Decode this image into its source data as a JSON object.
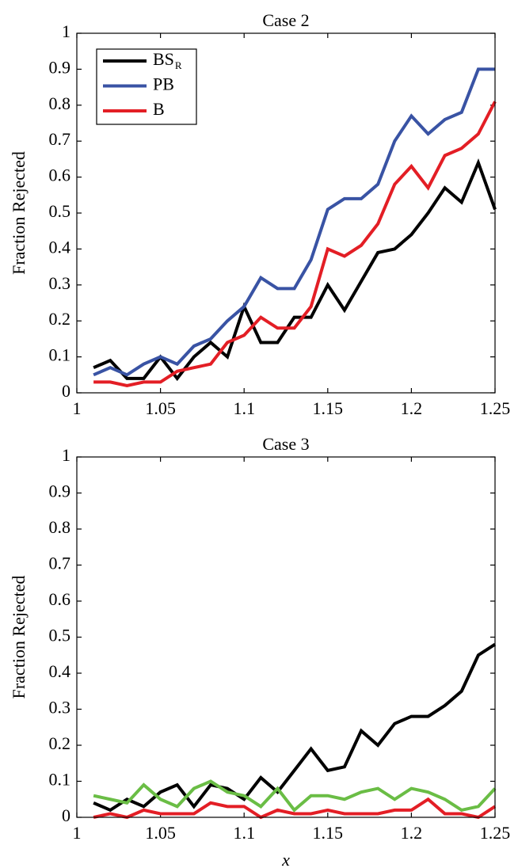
{
  "chart_data": [
    {
      "type": "line",
      "title": "Case 2",
      "ylabel": "Fraction Rejected",
      "x": [
        1.01,
        1.02,
        1.03,
        1.04,
        1.05,
        1.06,
        1.07,
        1.08,
        1.09,
        1.1,
        1.11,
        1.12,
        1.13,
        1.14,
        1.15,
        1.16,
        1.17,
        1.18,
        1.19,
        1.2,
        1.21,
        1.22,
        1.23,
        1.24,
        1.25
      ],
      "series": [
        {
          "name": "BS",
          "name_sub": "R",
          "color": "#000000",
          "values": [
            0.07,
            0.09,
            0.04,
            0.04,
            0.1,
            0.04,
            0.1,
            0.14,
            0.1,
            0.24,
            0.14,
            0.14,
            0.21,
            0.21,
            0.3,
            0.23,
            0.31,
            0.39,
            0.4,
            0.44,
            0.5,
            0.57,
            0.53,
            0.64,
            0.51
          ]
        },
        {
          "name": "PB",
          "color": "#3953a4",
          "values": [
            0.05,
            0.07,
            0.05,
            0.08,
            0.1,
            0.08,
            0.13,
            0.15,
            0.2,
            0.24,
            0.32,
            0.29,
            0.29,
            0.37,
            0.51,
            0.54,
            0.54,
            0.58,
            0.7,
            0.77,
            0.72,
            0.76,
            0.78,
            0.9,
            0.9
          ]
        },
        {
          "name": "B",
          "color": "#e31e25",
          "values": [
            0.03,
            0.03,
            0.02,
            0.03,
            0.03,
            0.06,
            0.07,
            0.08,
            0.14,
            0.16,
            0.21,
            0.18,
            0.18,
            0.24,
            0.4,
            0.38,
            0.41,
            0.47,
            0.58,
            0.63,
            0.57,
            0.66,
            0.68,
            0.72,
            0.81
          ]
        }
      ],
      "xlim": [
        1,
        1.25
      ],
      "ylim": [
        0,
        1
      ],
      "xticks": [
        1,
        1.05,
        1.1,
        1.15,
        1.2,
        1.25
      ],
      "yticks": [
        0,
        0.1,
        0.2,
        0.3,
        0.4,
        0.5,
        0.6,
        0.7,
        0.8,
        0.9,
        1
      ],
      "legend": "upper left"
    },
    {
      "type": "line",
      "title": "Case 3",
      "ylabel": "Fraction Rejected",
      "xlabel": "x",
      "x": [
        1.01,
        1.02,
        1.03,
        1.04,
        1.05,
        1.06,
        1.07,
        1.08,
        1.09,
        1.1,
        1.11,
        1.12,
        1.13,
        1.14,
        1.15,
        1.16,
        1.17,
        1.18,
        1.19,
        1.2,
        1.21,
        1.22,
        1.23,
        1.24,
        1.25
      ],
      "series": [
        {
          "color": "#000000",
          "values": [
            0.04,
            0.02,
            0.05,
            0.03,
            0.07,
            0.09,
            0.03,
            0.09,
            0.08,
            0.05,
            0.11,
            0.07,
            0.13,
            0.19,
            0.13,
            0.14,
            0.24,
            0.2,
            0.26,
            0.28,
            0.28,
            0.31,
            0.35,
            0.45,
            0.48
          ]
        },
        {
          "color": "#6abd45",
          "values": [
            0.06,
            0.05,
            0.04,
            0.09,
            0.05,
            0.03,
            0.08,
            0.1,
            0.07,
            0.06,
            0.03,
            0.08,
            0.02,
            0.06,
            0.06,
            0.05,
            0.07,
            0.08,
            0.05,
            0.08,
            0.07,
            0.05,
            0.02,
            0.03,
            0.08
          ]
        },
        {
          "color": "#e31e25",
          "values": [
            0.0,
            0.01,
            0.0,
            0.02,
            0.01,
            0.01,
            0.01,
            0.04,
            0.03,
            0.03,
            0.0,
            0.02,
            0.01,
            0.01,
            0.02,
            0.01,
            0.01,
            0.01,
            0.02,
            0.02,
            0.05,
            0.01,
            0.01,
            0.0,
            0.03
          ]
        }
      ],
      "xlim": [
        1,
        1.25
      ],
      "ylim": [
        0,
        1
      ],
      "xticks": [
        1,
        1.05,
        1.1,
        1.15,
        1.2,
        1.25
      ],
      "yticks": [
        0,
        0.1,
        0.2,
        0.3,
        0.4,
        0.5,
        0.6,
        0.7,
        0.8,
        0.9,
        1
      ]
    }
  ]
}
